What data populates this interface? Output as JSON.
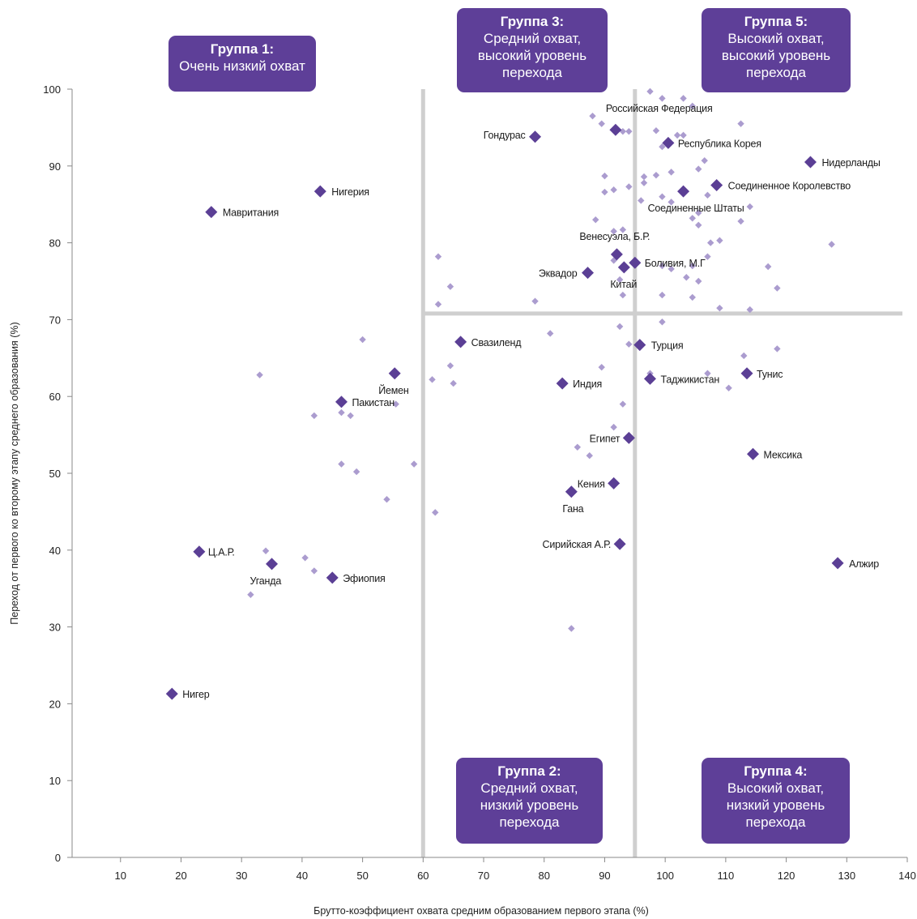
{
  "colors": {
    "highlight": "#5b3f95",
    "background_points": "#ab9ccf",
    "divider": "#cfcfcf",
    "box": "#5e3f98"
  },
  "groups": [
    {
      "id": "g1",
      "title": "Группа 1:",
      "lines": [
        "Очень низкий охват"
      ]
    },
    {
      "id": "g3",
      "title": "Группа 3:",
      "lines": [
        "Средний охват,",
        "высокий уровень",
        "перехода"
      ]
    },
    {
      "id": "g5",
      "title": "Группа 5:",
      "lines": [
        "Высокий охват,",
        "высокий уровень",
        "перехода"
      ]
    },
    {
      "id": "g2",
      "title": "Группа 2:",
      "lines": [
        "Средний охват,",
        "низкий уровень",
        "перехода"
      ]
    },
    {
      "id": "g4",
      "title": "Группа 4:",
      "lines": [
        "Высокий охват,",
        "низкий уровень",
        "перехода"
      ]
    }
  ],
  "chart_data": {
    "type": "scatter",
    "xlabel": "Брутто-коэффициент охвата средним образованием первого этапа (%)",
    "ylabel": "Переход от первого ко второму этапу среднего образования (%)",
    "xlim": [
      2,
      140
    ],
    "ylim": [
      0,
      100
    ],
    "x_ticks": [
      10,
      20,
      30,
      40,
      50,
      60,
      70,
      80,
      90,
      100,
      110,
      120,
      130,
      140
    ],
    "y_ticks": [
      0,
      10,
      20,
      30,
      40,
      50,
      60,
      70,
      80,
      90,
      100
    ],
    "thresholds": {
      "x": [
        60,
        95
      ],
      "y_from_x60": 70.8
    },
    "grid": false,
    "legend": "none",
    "highlighted": [
      {
        "name": "Мавритания",
        "x": 25,
        "y": 84
      },
      {
        "name": "Нигерия",
        "x": 43,
        "y": 86.7
      },
      {
        "name": "Гондурас",
        "x": 78.5,
        "y": 93.8
      },
      {
        "name": "Российская Федерация",
        "x": 91.8,
        "y": 94.7
      },
      {
        "name": "Республика Корея",
        "x": 100.5,
        "y": 93
      },
      {
        "name": "Нидерланды",
        "x": 124,
        "y": 90.5
      },
      {
        "name": "Соединенное Королевство",
        "x": 108.5,
        "y": 87.5
      },
      {
        "name": "Соединенные Штаты",
        "x": 103,
        "y": 86.7
      },
      {
        "name": "Венесуэла, Б.Р.",
        "x": 92,
        "y": 78.5
      },
      {
        "name": "Боливия, М.Г",
        "x": 95,
        "y": 77.4
      },
      {
        "name": "Эквадор",
        "x": 87.2,
        "y": 76.1
      },
      {
        "name": "Китай",
        "x": 93.2,
        "y": 76.8
      },
      {
        "name": "Свазиленд",
        "x": 66.2,
        "y": 67.1
      },
      {
        "name": "Турция",
        "x": 95.8,
        "y": 66.7
      },
      {
        "name": "Йемен",
        "x": 55.3,
        "y": 63
      },
      {
        "name": "Индия",
        "x": 83,
        "y": 61.7
      },
      {
        "name": "Таджикистан",
        "x": 97.5,
        "y": 62.3
      },
      {
        "name": "Тунис",
        "x": 113.5,
        "y": 63
      },
      {
        "name": "Пакистан",
        "x": 46.5,
        "y": 59.3
      },
      {
        "name": "Египет",
        "x": 94,
        "y": 54.6
      },
      {
        "name": "Мексика",
        "x": 114.5,
        "y": 52.5
      },
      {
        "name": "Кения",
        "x": 91.5,
        "y": 48.7
      },
      {
        "name": "Гана",
        "x": 84.5,
        "y": 47.6
      },
      {
        "name": "Сирийская А.Р.",
        "x": 92.5,
        "y": 40.8
      },
      {
        "name": "Ц.А.Р.",
        "x": 23,
        "y": 39.8
      },
      {
        "name": "Уганда",
        "x": 35,
        "y": 38.2
      },
      {
        "name": "Эфиопия",
        "x": 45,
        "y": 36.4
      },
      {
        "name": "Алжир",
        "x": 128.5,
        "y": 38.3
      },
      {
        "name": "Нигер",
        "x": 18.5,
        "y": 21.3
      }
    ],
    "others": [
      [
        97.5,
        99.7
      ],
      [
        99.5,
        98.8
      ],
      [
        103,
        98.8
      ],
      [
        104.5,
        97.8
      ],
      [
        88,
        96.5
      ],
      [
        89.5,
        95.5
      ],
      [
        93,
        94.5
      ],
      [
        94,
        94.5
      ],
      [
        98.5,
        94.6
      ],
      [
        102,
        94
      ],
      [
        103,
        94
      ],
      [
        99.5,
        92.5
      ],
      [
        112.5,
        95.5
      ],
      [
        106.5,
        90.7
      ],
      [
        105.5,
        89.6
      ],
      [
        98.5,
        88.8
      ],
      [
        101,
        89.2
      ],
      [
        96.5,
        88.6
      ],
      [
        90,
        88.7
      ],
      [
        91.5,
        86.9
      ],
      [
        90,
        86.6
      ],
      [
        94,
        87.3
      ],
      [
        96.5,
        87.8
      ],
      [
        99.5,
        86
      ],
      [
        101,
        85.3
      ],
      [
        96,
        85.5
      ],
      [
        107,
        86.2
      ],
      [
        105.5,
        83.9
      ],
      [
        114,
        84.7
      ],
      [
        112.5,
        82.8
      ],
      [
        88.5,
        83
      ],
      [
        104.5,
        83.2
      ],
      [
        105.5,
        82.3
      ],
      [
        91.5,
        81.5
      ],
      [
        93,
        81.7
      ],
      [
        107.5,
        80
      ],
      [
        109,
        80.3
      ],
      [
        127.5,
        79.8
      ],
      [
        62.5,
        78.2
      ],
      [
        107,
        78.2
      ],
      [
        91.5,
        77.7
      ],
      [
        99.5,
        77
      ],
      [
        101,
        76.6
      ],
      [
        104.5,
        77
      ],
      [
        117,
        76.9
      ],
      [
        103.5,
        75.5
      ],
      [
        105.5,
        75
      ],
      [
        92.5,
        75.2
      ],
      [
        64.5,
        74.3
      ],
      [
        118.5,
        74.1
      ],
      [
        93,
        73.2
      ],
      [
        99.5,
        73.2
      ],
      [
        104.5,
        72.9
      ],
      [
        78.5,
        72.4
      ],
      [
        62.5,
        72
      ],
      [
        109,
        71.5
      ],
      [
        114,
        71.3
      ],
      [
        99.5,
        69.7
      ],
      [
        92.5,
        69.1
      ],
      [
        81,
        68.2
      ],
      [
        50,
        67.4
      ],
      [
        94,
        66.8
      ],
      [
        118.5,
        66.2
      ],
      [
        113,
        65.3
      ],
      [
        64.5,
        64
      ],
      [
        89.5,
        63.8
      ],
      [
        33,
        62.8
      ],
      [
        97.5,
        63
      ],
      [
        107,
        63
      ],
      [
        61.5,
        62.2
      ],
      [
        65,
        61.7
      ],
      [
        110.5,
        61.1
      ],
      [
        55.5,
        59
      ],
      [
        93,
        59
      ],
      [
        42,
        57.5
      ],
      [
        46.5,
        57.9
      ],
      [
        48,
        57.5
      ],
      [
        91.5,
        56
      ],
      [
        85.5,
        53.4
      ],
      [
        87.5,
        52.3
      ],
      [
        46.5,
        51.2
      ],
      [
        58.5,
        51.2
      ],
      [
        49,
        50.2
      ],
      [
        54,
        46.6
      ],
      [
        62,
        44.9
      ],
      [
        34,
        39.9
      ],
      [
        40.5,
        39
      ],
      [
        42,
        37.3
      ],
      [
        31.5,
        34.2
      ],
      [
        84.5,
        29.8
      ]
    ]
  }
}
